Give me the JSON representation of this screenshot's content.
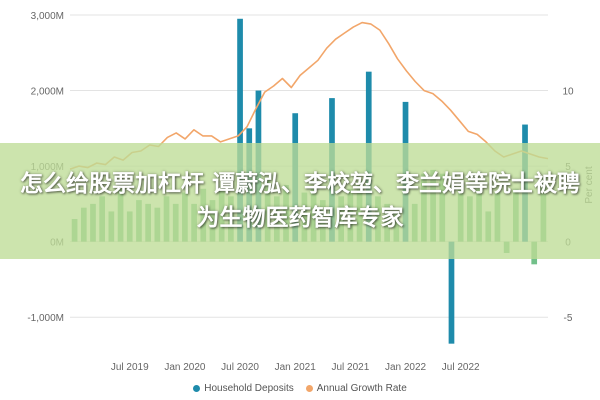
{
  "headline": "怎么给股票加杠杆 谭蔚泓、李校堃、李兰娟等院士被聘为生物医药智库专家",
  "chart_data": {
    "type": "bar",
    "title": "",
    "xlabel": "",
    "ylabel": "",
    "y2label": "Per cent",
    "y_ticks": [
      "3,000M",
      "2,000M",
      "1,000M",
      "0M",
      "-1,000M"
    ],
    "y_tick_values": [
      3000,
      2000,
      1000,
      0,
      -1000
    ],
    "ylim": [
      -1500,
      3000
    ],
    "y2_ticks": [
      "10",
      "5",
      "0",
      "-5"
    ],
    "y2_tick_values": [
      10,
      5,
      0,
      -5
    ],
    "y2lim": [
      -7.5,
      15
    ],
    "x_ticks": [
      "Jul 2019",
      "Jan 2020",
      "Jul 2020",
      "Jan 2021",
      "Jul 2021",
      "Jan 2022",
      "Jul 2022"
    ],
    "x_tick_index": [
      6,
      12,
      18,
      24,
      30,
      36,
      42
    ],
    "grid": true,
    "legend_position": "bottom",
    "colors": {
      "bars_primary": "#1e8bab",
      "bars_secondary": "#72c08a",
      "line": "#f2a66a",
      "grid": "#e3e3e3",
      "axis_text": "#666666"
    },
    "series": [
      {
        "name": "Household Deposits",
        "type": "bar",
        "values": [
          300,
          450,
          500,
          600,
          400,
          700,
          400,
          550,
          500,
          450,
          600,
          500,
          650,
          500,
          700,
          550,
          700,
          600,
          2950,
          1500,
          2000,
          850,
          600,
          750,
          1700,
          650,
          700,
          550,
          1900,
          600,
          700,
          800,
          2250,
          600,
          500,
          400,
          1850,
          500,
          900,
          950,
          900,
          -1350,
          700,
          600,
          700,
          400,
          650,
          -150,
          700,
          1550,
          -300,
          850
        ]
      },
      {
        "name": "Annual Growth Rate",
        "type": "line",
        "axis": "right",
        "values": [
          4.8,
          5.0,
          4.9,
          5.2,
          5.1,
          5.6,
          5.4,
          5.9,
          6.0,
          6.4,
          6.3,
          6.9,
          7.2,
          6.8,
          7.4,
          7.0,
          7.0,
          6.6,
          6.8,
          7.0,
          7.6,
          8.8,
          9.9,
          10.3,
          10.8,
          10.2,
          11.0,
          11.5,
          12.0,
          12.8,
          13.4,
          13.8,
          14.2,
          14.5,
          14.4,
          14.0,
          13.1,
          12.1,
          11.3,
          10.6,
          10.0,
          9.8,
          9.3,
          8.7,
          8.0,
          7.3,
          7.1,
          6.6,
          6.0,
          5.6,
          5.8,
          6.0,
          5.8,
          5.6,
          5.5
        ]
      }
    ]
  },
  "legend": {
    "items": [
      {
        "label": "Household Deposits",
        "color": "#1e8bab"
      },
      {
        "label": "Annual Growth Rate",
        "color": "#f2a66a"
      }
    ]
  }
}
